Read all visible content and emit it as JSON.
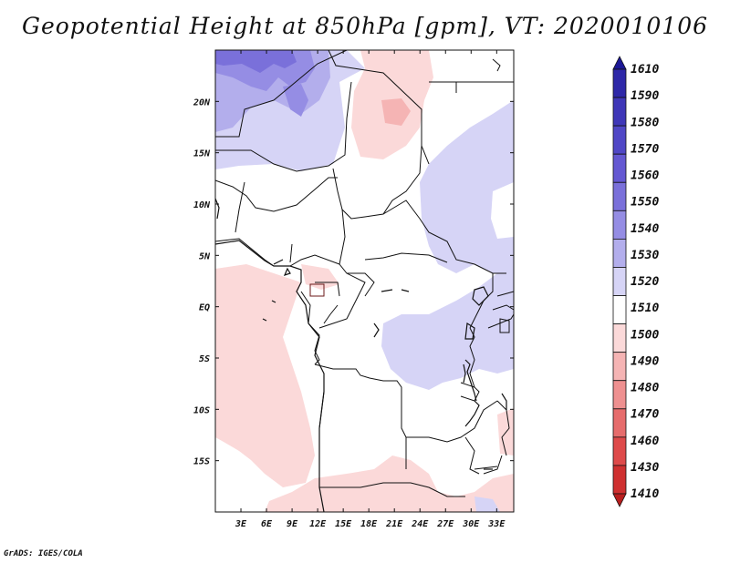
{
  "title": "Geopotential Height at 850hPa [gpm], VT: 2020010106",
  "credit": "GrADS: IGES/COLA",
  "map": {
    "lat_labels": [
      "20N",
      "15N",
      "10N",
      "5N",
      "EQ",
      "5S",
      "10S",
      "15S"
    ],
    "lon_labels": [
      "3E",
      "6E",
      "9E",
      "12E",
      "15E",
      "18E",
      "21E",
      "24E",
      "27E",
      "30E",
      "33E"
    ],
    "lon_range": [
      0,
      35
    ],
    "lat_range": [
      -20,
      25
    ],
    "projection": "lat-lon",
    "field": "geopotential height 850 hPa",
    "features": [
      "coastlines",
      "country-boundaries"
    ]
  },
  "colorbar": {
    "levels": [
      "1610",
      "1590",
      "1580",
      "1570",
      "1560",
      "1550",
      "1540",
      "1530",
      "1520",
      "1510",
      "1500",
      "1490",
      "1480",
      "1470",
      "1460",
      "1430",
      "1410"
    ],
    "colors": [
      "#1c1796",
      "#2e28a8",
      "#3f37b8",
      "#5047c6",
      "#6458d2",
      "#7a70da",
      "#958de4",
      "#b3aeec",
      "#d6d4f6",
      "#ffffff",
      "#fbd9d9",
      "#f5b4b4",
      "#ee9090",
      "#e66c6c",
      "#de4a4a",
      "#cf3030",
      "#b81e1e"
    ]
  }
}
